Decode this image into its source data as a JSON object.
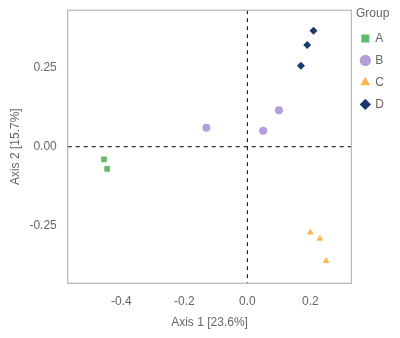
{
  "chart_data": {
    "type": "scatter",
    "xlabel": "Axis 1 [23.6%]",
    "ylabel": "Axis 2 [15.7%]",
    "legend_title": "Group",
    "legend": "right",
    "grid": false,
    "series": [
      {
        "name": "A",
        "color": "#66bb6a",
        "marker": "square",
        "x": [
          -0.455,
          -0.445
        ],
        "values": [
          -0.04,
          -0.07
        ]
      },
      {
        "name": "B",
        "color": "#b39ddb",
        "marker": "circle",
        "x": [
          -0.13,
          0.05,
          0.1
        ],
        "values": [
          0.06,
          0.05,
          0.115
        ]
      },
      {
        "name": "C",
        "color": "#ffb74d",
        "marker": "triangle",
        "x": [
          0.2,
          0.23,
          0.25
        ],
        "values": [
          -0.27,
          -0.29,
          -0.36
        ]
      },
      {
        "name": "D",
        "color": "#1a3a6b",
        "marker": "diamond",
        "x": [
          0.17,
          0.19,
          0.21
        ],
        "values": [
          0.255,
          0.32,
          0.365
        ]
      }
    ],
    "reference_lines": {
      "x": [
        0
      ],
      "y": [
        0
      ]
    },
    "xlim": [
      -0.57,
      0.33
    ],
    "ylim": [
      -0.43,
      0.43
    ],
    "xticks": [
      -0.4,
      -0.2,
      {
        "value": 0,
        "label": "0.0"
      },
      0.2
    ],
    "yticks": [
      -0.25,
      {
        "value": 0,
        "label": "0.00"
      },
      0.25
    ]
  }
}
